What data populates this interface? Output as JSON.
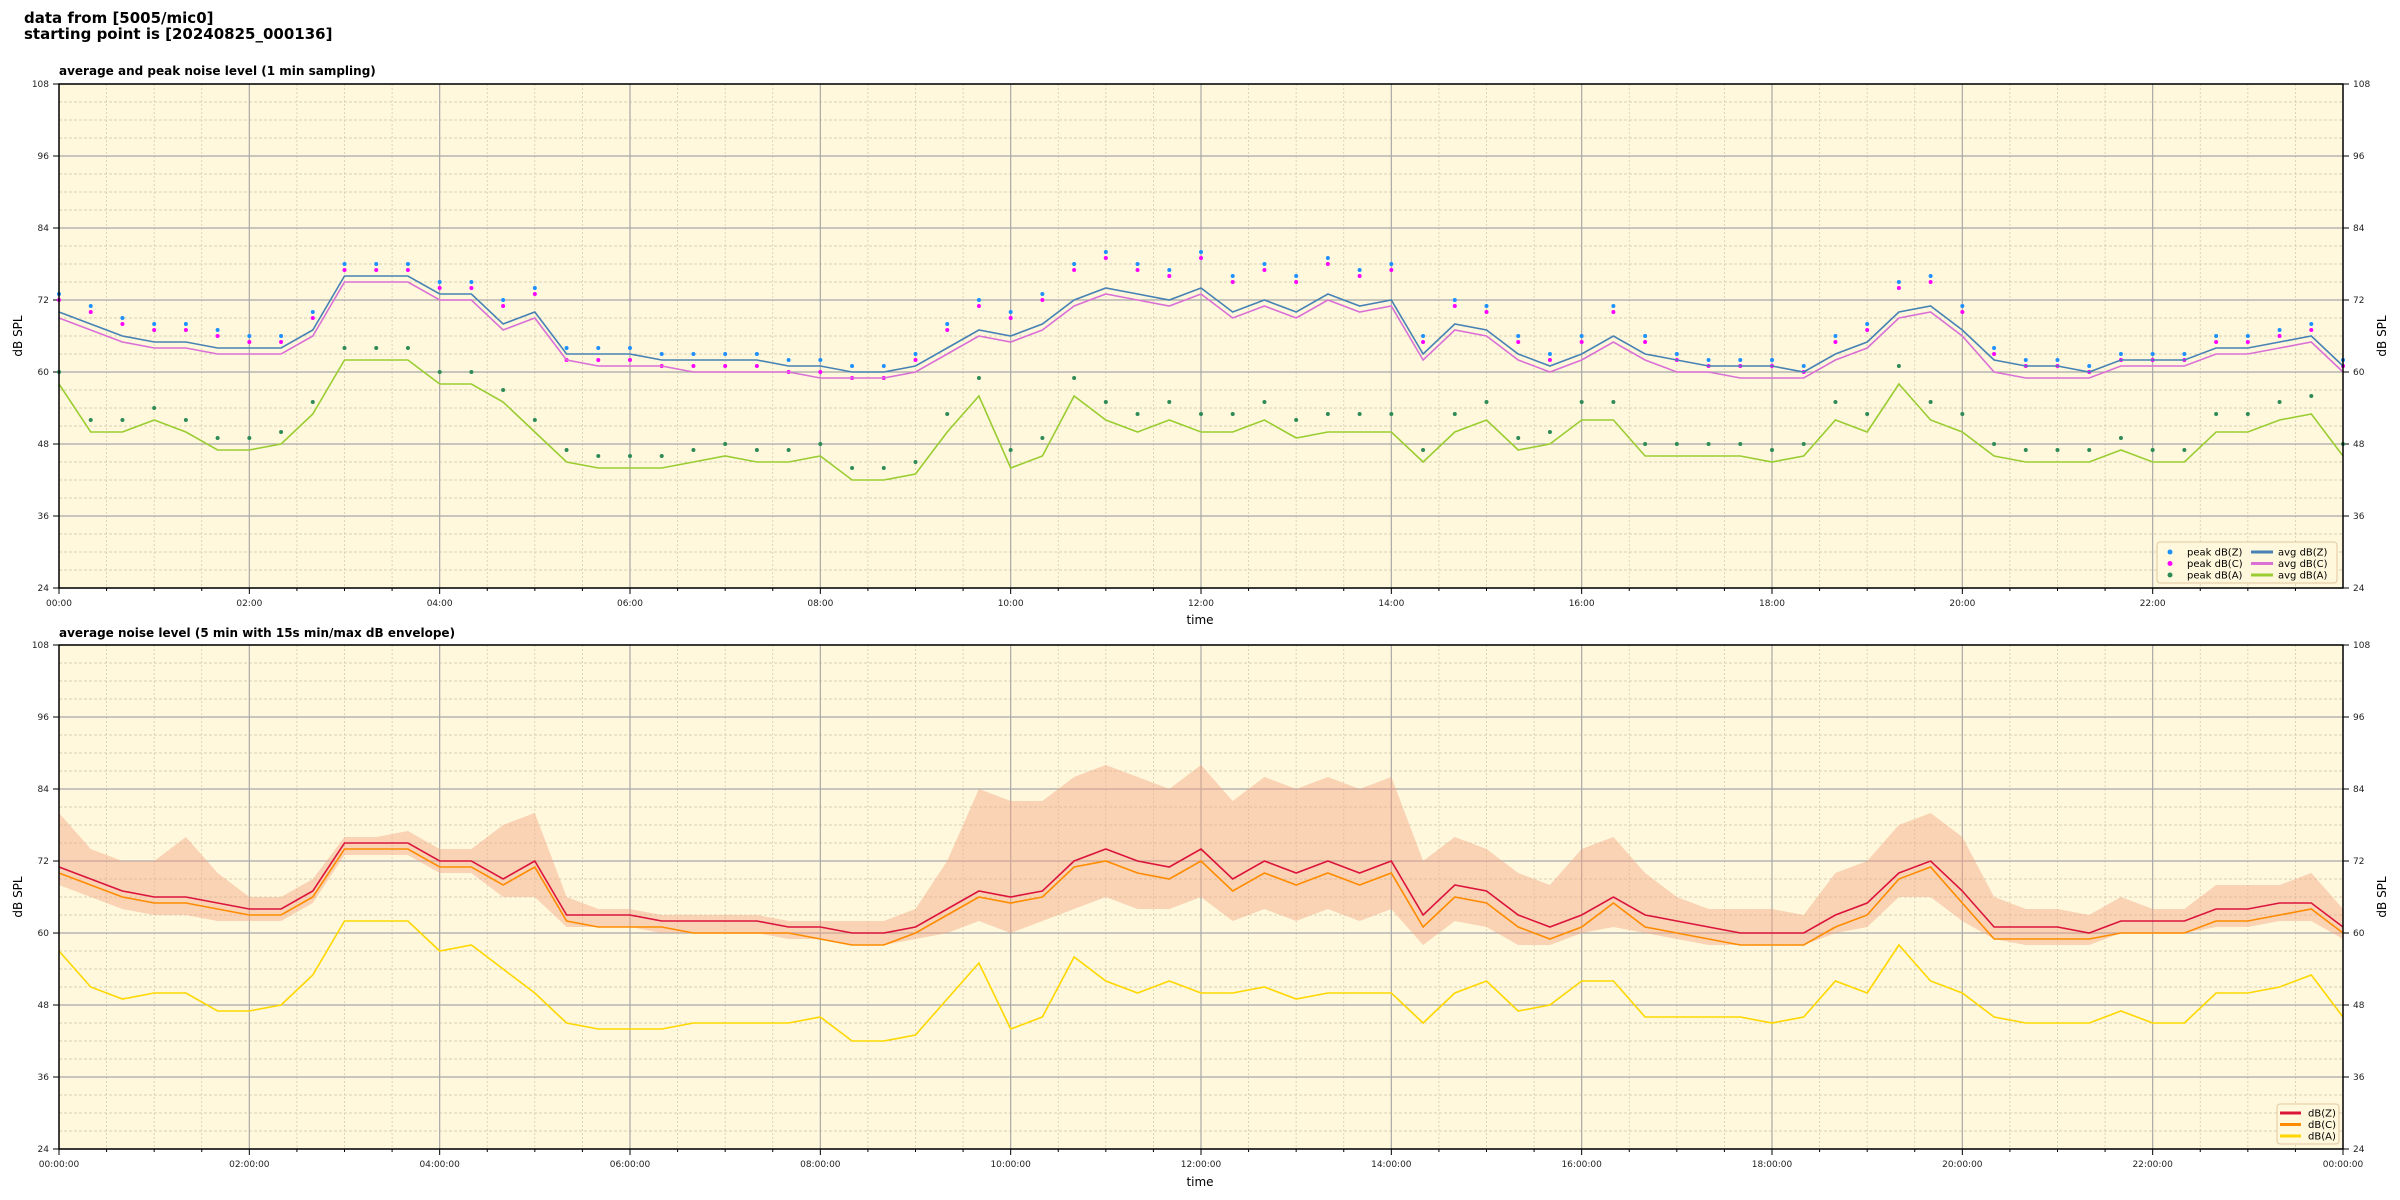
{
  "header": {
    "line1": "data from [5005/mic0]",
    "line2": "starting point is [20240825_000136]"
  },
  "chart_data": [
    {
      "type": "line",
      "title": "average and peak noise level (1 min sampling)",
      "xlabel": "time",
      "ylabel": "dB SPL",
      "xlim": [
        "00:00",
        "24:00"
      ],
      "ylim": [
        24,
        108
      ],
      "yticks": [
        "24",
        "36",
        "48",
        "60",
        "72",
        "84",
        "96",
        "108"
      ],
      "xticks": [
        "00:00",
        "02:00",
        "04:00",
        "06:00",
        "08:00",
        "10:00",
        "12:00",
        "14:00",
        "16:00",
        "18:00",
        "20:00",
        "22:00"
      ],
      "grid": true,
      "background": "#fff8dc",
      "legend_placement": "lower-right",
      "x": [
        "00:00",
        "00:20",
        "00:40",
        "01:00",
        "01:20",
        "01:40",
        "02:00",
        "02:20",
        "02:40",
        "03:00",
        "03:20",
        "03:40",
        "04:00",
        "04:20",
        "04:40",
        "05:00",
        "05:20",
        "05:40",
        "06:00",
        "06:20",
        "06:40",
        "07:00",
        "07:20",
        "07:40",
        "08:00",
        "08:20",
        "08:40",
        "09:00",
        "09:20",
        "09:40",
        "10:00",
        "10:20",
        "10:40",
        "11:00",
        "11:20",
        "11:40",
        "12:00",
        "12:20",
        "12:40",
        "13:00",
        "13:20",
        "13:40",
        "14:00",
        "14:20",
        "14:40",
        "15:00",
        "15:20",
        "15:40",
        "16:00",
        "16:20",
        "16:40",
        "17:00",
        "17:20",
        "17:40",
        "18:00",
        "18:20",
        "18:40",
        "19:00",
        "19:20",
        "19:40",
        "20:00",
        "20:20",
        "20:40",
        "21:00",
        "21:20",
        "21:40",
        "22:00",
        "22:20",
        "22:40",
        "23:00",
        "23:20",
        "23:40",
        "24:00"
      ],
      "series": [
        {
          "name": "peak dB(Z)",
          "kind": "points",
          "color": "#1e90ff",
          "values": [
            73,
            71,
            69,
            68,
            68,
            67,
            66,
            66,
            70,
            78,
            78,
            78,
            75,
            75,
            72,
            74,
            64,
            64,
            64,
            63,
            63,
            63,
            63,
            62,
            62,
            61,
            61,
            63,
            68,
            72,
            70,
            73,
            78,
            80,
            78,
            77,
            80,
            76,
            78,
            76,
            79,
            77,
            78,
            66,
            72,
            71,
            66,
            63,
            66,
            71,
            66,
            63,
            62,
            62,
            62,
            61,
            66,
            68,
            75,
            76,
            71,
            64,
            62,
            62,
            61,
            63,
            63,
            63,
            66,
            66,
            67,
            68,
            62
          ]
        },
        {
          "name": "peak dB(C)",
          "kind": "points",
          "color": "#ff00ff",
          "values": [
            72,
            70,
            68,
            67,
            67,
            66,
            65,
            65,
            69,
            77,
            77,
            77,
            74,
            74,
            71,
            73,
            62,
            62,
            62,
            61,
            61,
            61,
            61,
            60,
            60,
            59,
            59,
            62,
            67,
            71,
            69,
            72,
            77,
            79,
            77,
            76,
            79,
            75,
            77,
            75,
            78,
            76,
            77,
            65,
            71,
            70,
            65,
            62,
            65,
            70,
            65,
            62,
            61,
            61,
            61,
            60,
            65,
            67,
            74,
            75,
            70,
            63,
            61,
            61,
            60,
            62,
            62,
            62,
            65,
            65,
            66,
            67,
            61
          ]
        },
        {
          "name": "peak dB(A)",
          "kind": "points",
          "color": "#2e8b57",
          "values": [
            60,
            52,
            52,
            54,
            52,
            49,
            49,
            50,
            55,
            64,
            64,
            64,
            60,
            60,
            57,
            52,
            47,
            46,
            46,
            46,
            47,
            48,
            47,
            47,
            48,
            44,
            44,
            45,
            53,
            59,
            47,
            49,
            59,
            55,
            53,
            55,
            53,
            53,
            55,
            52,
            53,
            53,
            53,
            47,
            53,
            55,
            49,
            50,
            55,
            55,
            48,
            48,
            48,
            48,
            47,
            48,
            55,
            53,
            61,
            55,
            53,
            48,
            47,
            47,
            47,
            49,
            47,
            47,
            53,
            53,
            55,
            56,
            48
          ]
        },
        {
          "name": "avg dB(Z)",
          "kind": "line",
          "color": "#4682b4",
          "values": [
            70,
            68,
            66,
            65,
            65,
            64,
            64,
            64,
            67,
            76,
            76,
            76,
            73,
            73,
            68,
            70,
            63,
            63,
            63,
            62,
            62,
            62,
            62,
            61,
            61,
            60,
            60,
            61,
            64,
            67,
            66,
            68,
            72,
            74,
            73,
            72,
            74,
            70,
            72,
            70,
            73,
            71,
            72,
            63,
            68,
            67,
            63,
            61,
            63,
            66,
            63,
            62,
            61,
            61,
            61,
            60,
            63,
            65,
            70,
            71,
            67,
            62,
            61,
            61,
            60,
            62,
            62,
            62,
            64,
            64,
            65,
            66,
            61
          ]
        },
        {
          "name": "avg dB(C)",
          "kind": "line",
          "color": "#da70d6",
          "values": [
            69,
            67,
            65,
            64,
            64,
            63,
            63,
            63,
            66,
            75,
            75,
            75,
            72,
            72,
            67,
            69,
            62,
            61,
            61,
            61,
            60,
            60,
            60,
            60,
            59,
            59,
            59,
            60,
            63,
            66,
            65,
            67,
            71,
            73,
            72,
            71,
            73,
            69,
            71,
            69,
            72,
            70,
            71,
            62,
            67,
            66,
            62,
            60,
            62,
            65,
            62,
            60,
            60,
            59,
            59,
            59,
            62,
            64,
            69,
            70,
            66,
            60,
            59,
            59,
            59,
            61,
            61,
            61,
            63,
            63,
            64,
            65,
            60
          ]
        },
        {
          "name": "avg dB(A)",
          "kind": "line",
          "color": "#9acd32",
          "values": [
            58,
            50,
            50,
            52,
            50,
            47,
            47,
            48,
            53,
            62,
            62,
            62,
            58,
            58,
            55,
            50,
            45,
            44,
            44,
            44,
            45,
            46,
            45,
            45,
            46,
            42,
            42,
            43,
            50,
            56,
            44,
            46,
            56,
            52,
            50,
            52,
            50,
            50,
            52,
            49,
            50,
            50,
            50,
            45,
            50,
            52,
            47,
            48,
            52,
            52,
            46,
            46,
            46,
            46,
            45,
            46,
            52,
            50,
            58,
            52,
            50,
            46,
            45,
            45,
            45,
            47,
            45,
            45,
            50,
            50,
            52,
            53,
            46
          ]
        }
      ]
    },
    {
      "type": "line",
      "title": "average noise level (5 min with 15s min/max dB envelope)",
      "xlabel": "time",
      "ylabel": "dB SPL",
      "xlim": [
        "00:00:00",
        "24:00:00"
      ],
      "ylim": [
        24,
        108
      ],
      "yticks": [
        "24",
        "36",
        "48",
        "60",
        "72",
        "84",
        "96",
        "108"
      ],
      "xticks": [
        "00:00:00",
        "02:00:00",
        "04:00:00",
        "06:00:00",
        "08:00:00",
        "10:00:00",
        "12:00:00",
        "14:00:00",
        "16:00:00",
        "18:00:00",
        "20:00:00",
        "22:00:00",
        "00:00:00"
      ],
      "grid": true,
      "background": "#fff8dc",
      "legend_placement": "lower-right",
      "x": [
        "00:00",
        "00:20",
        "00:40",
        "01:00",
        "01:20",
        "01:40",
        "02:00",
        "02:20",
        "02:40",
        "03:00",
        "03:20",
        "03:40",
        "04:00",
        "04:20",
        "04:40",
        "05:00",
        "05:20",
        "05:40",
        "06:00",
        "06:20",
        "06:40",
        "07:00",
        "07:20",
        "07:40",
        "08:00",
        "08:20",
        "08:40",
        "09:00",
        "09:20",
        "09:40",
        "10:00",
        "10:20",
        "10:40",
        "11:00",
        "11:20",
        "11:40",
        "12:00",
        "12:20",
        "12:40",
        "13:00",
        "13:20",
        "13:40",
        "14:00",
        "14:20",
        "14:40",
        "15:00",
        "15:20",
        "15:40",
        "16:00",
        "16:20",
        "16:40",
        "17:00",
        "17:20",
        "17:40",
        "18:00",
        "18:20",
        "18:40",
        "19:00",
        "19:20",
        "19:40",
        "20:00",
        "20:20",
        "20:40",
        "21:00",
        "21:20",
        "21:40",
        "22:00",
        "22:20",
        "22:40",
        "23:00",
        "23:20",
        "23:40",
        "24:00"
      ],
      "envelope": {
        "color": "#f4a582",
        "max": [
          80,
          74,
          72,
          72,
          76,
          70,
          66,
          66,
          69,
          76,
          76,
          77,
          74,
          74,
          78,
          80,
          66,
          64,
          64,
          63,
          63,
          63,
          63,
          62,
          62,
          62,
          62,
          64,
          72,
          84,
          82,
          82,
          86,
          88,
          86,
          84,
          88,
          82,
          86,
          84,
          86,
          84,
          86,
          72,
          76,
          74,
          70,
          68,
          74,
          76,
          70,
          66,
          64,
          64,
          64,
          63,
          70,
          72,
          78,
          80,
          76,
          66,
          64,
          64,
          63,
          66,
          64,
          64,
          68,
          68,
          68,
          70,
          64
        ],
        "min": [
          68,
          66,
          64,
          63,
          63,
          62,
          62,
          62,
          65,
          73,
          73,
          73,
          70,
          70,
          66,
          66,
          61,
          61,
          61,
          60,
          60,
          60,
          60,
          59,
          59,
          58,
          58,
          59,
          60,
          62,
          60,
          62,
          64,
          66,
          64,
          64,
          66,
          62,
          64,
          62,
          64,
          62,
          64,
          58,
          62,
          61,
          58,
          58,
          60,
          61,
          60,
          59,
          58,
          58,
          58,
          58,
          60,
          61,
          66,
          66,
          62,
          59,
          58,
          58,
          58,
          60,
          60,
          60,
          61,
          61,
          62,
          62,
          59
        ]
      },
      "series": [
        {
          "name": "dB(Z)",
          "kind": "line",
          "color": "#dc143c",
          "values": [
            71,
            69,
            67,
            66,
            66,
            65,
            64,
            64,
            67,
            75,
            75,
            75,
            72,
            72,
            69,
            72,
            63,
            63,
            63,
            62,
            62,
            62,
            62,
            61,
            61,
            60,
            60,
            61,
            64,
            67,
            66,
            67,
            72,
            74,
            72,
            71,
            74,
            69,
            72,
            70,
            72,
            70,
            72,
            63,
            68,
            67,
            63,
            61,
            63,
            66,
            63,
            62,
            61,
            60,
            60,
            60,
            63,
            65,
            70,
            72,
            67,
            61,
            61,
            61,
            60,
            62,
            62,
            62,
            64,
            64,
            65,
            65,
            61
          ]
        },
        {
          "name": "dB(C)",
          "kind": "line",
          "color": "#ff8c00",
          "values": [
            70,
            68,
            66,
            65,
            65,
            64,
            63,
            63,
            66,
            74,
            74,
            74,
            71,
            71,
            68,
            71,
            62,
            61,
            61,
            61,
            60,
            60,
            60,
            60,
            59,
            58,
            58,
            60,
            63,
            66,
            65,
            66,
            71,
            72,
            70,
            69,
            72,
            67,
            70,
            68,
            70,
            68,
            70,
            61,
            66,
            65,
            61,
            59,
            61,
            65,
            61,
            60,
            59,
            58,
            58,
            58,
            61,
            63,
            69,
            71,
            65,
            59,
            59,
            59,
            59,
            60,
            60,
            60,
            62,
            62,
            63,
            64,
            60
          ]
        },
        {
          "name": "dB(A)",
          "kind": "line",
          "color": "#ffd700",
          "values": [
            57,
            51,
            49,
            50,
            50,
            47,
            47,
            48,
            53,
            62,
            62,
            62,
            57,
            58,
            54,
            50,
            45,
            44,
            44,
            44,
            45,
            45,
            45,
            45,
            46,
            42,
            42,
            43,
            49,
            55,
            44,
            46,
            56,
            52,
            50,
            52,
            50,
            50,
            51,
            49,
            50,
            50,
            50,
            45,
            50,
            52,
            47,
            48,
            52,
            52,
            46,
            46,
            46,
            46,
            45,
            46,
            52,
            50,
            58,
            52,
            50,
            46,
            45,
            45,
            45,
            47,
            45,
            45,
            50,
            50,
            51,
            53,
            46
          ]
        }
      ]
    }
  ]
}
